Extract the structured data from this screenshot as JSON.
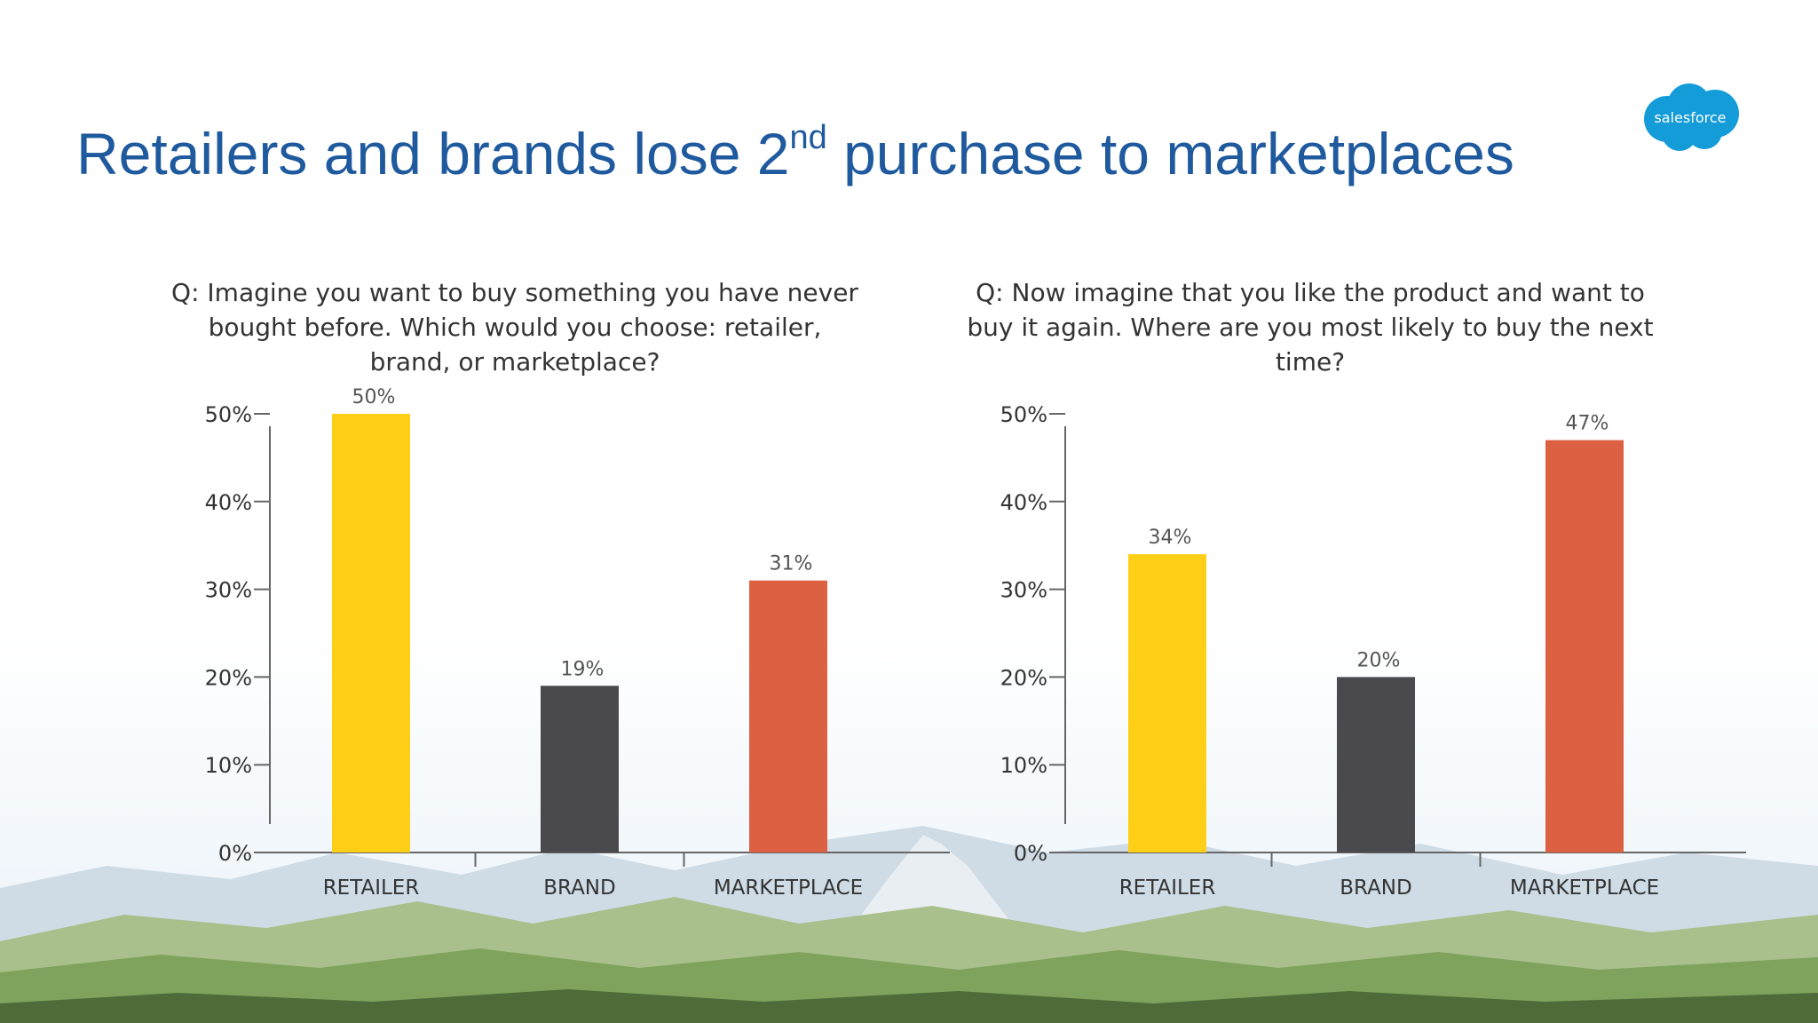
{
  "slide": {
    "title_main": "Retailers and brands lose 2",
    "title_sup": "nd",
    "title_end": " purchase to marketplaces",
    "logo_text": "salesforce"
  },
  "colors": {
    "title": "#1f5a9e",
    "retailer": "#fdd017",
    "brand": "#4a494e",
    "marketplace": "#dc6042",
    "axis": "#666666",
    "logo": "#139cd8"
  },
  "chart_data": [
    {
      "type": "bar",
      "title": "Q: Imagine you want to buy something you have never bought before. Which would you choose: retailer, brand, or marketplace?",
      "categories": [
        "RETAILER",
        "BRAND",
        "MARKETPLACE"
      ],
      "values": [
        50,
        19,
        31
      ],
      "data_labels": [
        "50%",
        "19%",
        "31%"
      ],
      "yticks": [
        "0%",
        "10%",
        "20%",
        "30%",
        "40%",
        "50%"
      ],
      "ylim": [
        0,
        50
      ],
      "grid": false,
      "legend": "none"
    },
    {
      "type": "bar",
      "title": "Q: Now imagine that you like the product and want to buy it again. Where are you most likely to buy the next time?",
      "categories": [
        "RETAILER",
        "BRAND",
        "MARKETPLACE"
      ],
      "values": [
        34,
        20,
        47
      ],
      "data_labels": [
        "34%",
        "20%",
        "47%"
      ],
      "yticks": [
        "0%",
        "10%",
        "20%",
        "30%",
        "40%",
        "50%"
      ],
      "ylim": [
        0,
        50
      ],
      "grid": false,
      "legend": "none"
    }
  ]
}
